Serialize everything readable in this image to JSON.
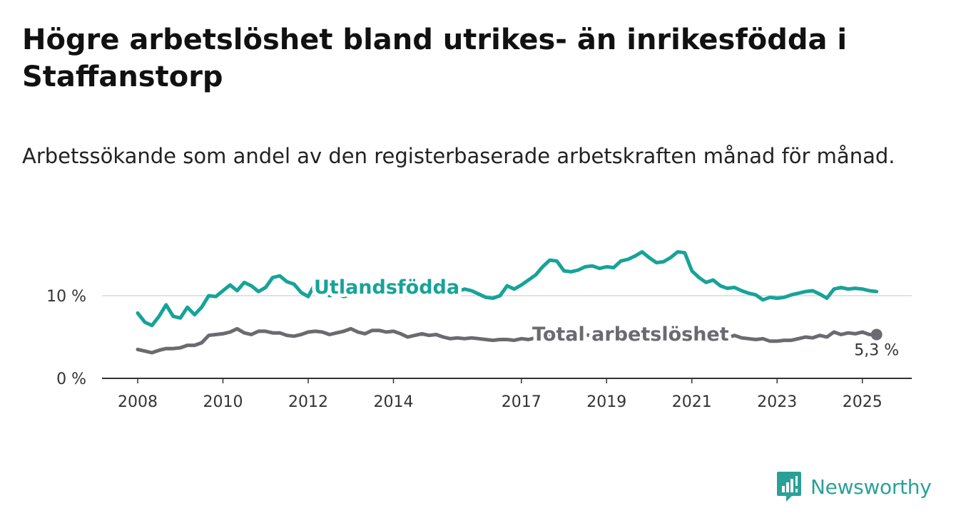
{
  "title": "Högre arbetslöshet bland utrikes- än inrikesfödda i Staffanstorp",
  "subtitle": "Arbetssökande som andel av den registerbaserade arbetskraften månad för månad.",
  "brand": {
    "name": "Newsworthy",
    "icon": "newsworthy-logo-icon",
    "color": "#2aa197"
  },
  "chart_data": {
    "type": "line",
    "xlabel": "",
    "ylabel": "",
    "ylim": [
      0,
      18
    ],
    "y_ticks": [
      {
        "value": 0,
        "label": "0 %"
      },
      {
        "value": 10,
        "label": "10 %"
      }
    ],
    "x_ticks": [
      "2008",
      "2010",
      "2012",
      "2014",
      "2017",
      "2019",
      "2021",
      "2023",
      "2025"
    ],
    "grid": "horizontal",
    "legend": "inline labels",
    "end_label": "5,3 %",
    "series": [
      {
        "name": "Utlandsfödda",
        "color": "#17a398",
        "points": [
          [
            "2008-01",
            7.9
          ],
          [
            "2008-03",
            6.8
          ],
          [
            "2008-05",
            6.4
          ],
          [
            "2008-07",
            7.5
          ],
          [
            "2008-09",
            8.9
          ],
          [
            "2008-11",
            7.5
          ],
          [
            "2009-01",
            7.3
          ],
          [
            "2009-03",
            8.6
          ],
          [
            "2009-05",
            7.7
          ],
          [
            "2009-07",
            8.6
          ],
          [
            "2009-09",
            10.0
          ],
          [
            "2009-11",
            9.9
          ],
          [
            "2010-01",
            10.6
          ],
          [
            "2010-03",
            11.3
          ],
          [
            "2010-05",
            10.6
          ],
          [
            "2010-07",
            11.6
          ],
          [
            "2010-09",
            11.2
          ],
          [
            "2010-11",
            10.5
          ],
          [
            "2011-01",
            11.0
          ],
          [
            "2011-03",
            12.2
          ],
          [
            "2011-05",
            12.4
          ],
          [
            "2011-07",
            11.7
          ],
          [
            "2011-09",
            11.4
          ],
          [
            "2011-11",
            10.4
          ],
          [
            "2012-01",
            9.9
          ],
          [
            "2012-03",
            11.5
          ],
          [
            "2012-05",
            10.6
          ],
          [
            "2012-07",
            10.0
          ],
          [
            "2012-09",
            10.2
          ],
          [
            "2012-11",
            9.9
          ],
          [
            "2013-01",
            10.1
          ],
          [
            "2013-03",
            10.3
          ],
          [
            "2013-05",
            10.4
          ],
          [
            "2013-07",
            10.6
          ],
          [
            "2013-09",
            10.2
          ],
          [
            "2013-11",
            10.5
          ],
          [
            "2014-01",
            10.3
          ],
          [
            "2014-03",
            10.0
          ],
          [
            "2014-05",
            10.6
          ],
          [
            "2014-07",
            10.2
          ],
          [
            "2014-09",
            10.5
          ],
          [
            "2014-11",
            10.3
          ],
          [
            "2015-01",
            10.6
          ],
          [
            "2015-03",
            10.4
          ],
          [
            "2015-05",
            10.7
          ],
          [
            "2015-07",
            10.5
          ],
          [
            "2015-09",
            10.8
          ],
          [
            "2015-11",
            10.6
          ],
          [
            "2016-01",
            10.2
          ],
          [
            "2016-03",
            9.8
          ],
          [
            "2016-05",
            9.7
          ],
          [
            "2016-07",
            10.0
          ],
          [
            "2016-09",
            11.2
          ],
          [
            "2016-11",
            10.8
          ],
          [
            "2017-01",
            11.3
          ],
          [
            "2017-03",
            11.9
          ],
          [
            "2017-05",
            12.5
          ],
          [
            "2017-07",
            13.5
          ],
          [
            "2017-09",
            14.3
          ],
          [
            "2017-11",
            14.2
          ],
          [
            "2018-01",
            13.0
          ],
          [
            "2018-03",
            12.9
          ],
          [
            "2018-05",
            13.1
          ],
          [
            "2018-07",
            13.5
          ],
          [
            "2018-09",
            13.6
          ],
          [
            "2018-11",
            13.3
          ],
          [
            "2019-01",
            13.5
          ],
          [
            "2019-03",
            13.4
          ],
          [
            "2019-05",
            14.2
          ],
          [
            "2019-07",
            14.4
          ],
          [
            "2019-09",
            14.8
          ],
          [
            "2019-11",
            15.3
          ],
          [
            "2020-01",
            14.6
          ],
          [
            "2020-03",
            14.0
          ],
          [
            "2020-05",
            14.1
          ],
          [
            "2020-07",
            14.6
          ],
          [
            "2020-09",
            15.3
          ],
          [
            "2020-11",
            15.2
          ],
          [
            "2021-01",
            13.0
          ],
          [
            "2021-03",
            12.2
          ],
          [
            "2021-05",
            11.6
          ],
          [
            "2021-07",
            11.9
          ],
          [
            "2021-09",
            11.2
          ],
          [
            "2021-11",
            10.9
          ],
          [
            "2022-01",
            11.0
          ],
          [
            "2022-03",
            10.6
          ],
          [
            "2022-05",
            10.3
          ],
          [
            "2022-07",
            10.1
          ],
          [
            "2022-09",
            9.5
          ],
          [
            "2022-11",
            9.8
          ],
          [
            "2023-01",
            9.7
          ],
          [
            "2023-03",
            9.8
          ],
          [
            "2023-05",
            10.1
          ],
          [
            "2023-07",
            10.3
          ],
          [
            "2023-09",
            10.5
          ],
          [
            "2023-11",
            10.6
          ],
          [
            "2024-01",
            10.2
          ],
          [
            "2024-03",
            9.7
          ],
          [
            "2024-05",
            10.8
          ],
          [
            "2024-07",
            11.0
          ],
          [
            "2024-09",
            10.8
          ],
          [
            "2024-11",
            10.9
          ],
          [
            "2025-01",
            10.8
          ],
          [
            "2025-03",
            10.6
          ],
          [
            "2025-05",
            10.5
          ]
        ]
      },
      {
        "name": "Total arbetslöshet",
        "color": "#6a6b70",
        "points": [
          [
            "2008-01",
            3.5
          ],
          [
            "2008-03",
            3.3
          ],
          [
            "2008-05",
            3.1
          ],
          [
            "2008-07",
            3.4
          ],
          [
            "2008-09",
            3.6
          ],
          [
            "2008-11",
            3.6
          ],
          [
            "2009-01",
            3.7
          ],
          [
            "2009-03",
            4.0
          ],
          [
            "2009-05",
            4.0
          ],
          [
            "2009-07",
            4.3
          ],
          [
            "2009-09",
            5.2
          ],
          [
            "2009-11",
            5.3
          ],
          [
            "2010-01",
            5.4
          ],
          [
            "2010-03",
            5.6
          ],
          [
            "2010-05",
            6.0
          ],
          [
            "2010-07",
            5.5
          ],
          [
            "2010-09",
            5.3
          ],
          [
            "2010-11",
            5.7
          ],
          [
            "2011-01",
            5.7
          ],
          [
            "2011-03",
            5.5
          ],
          [
            "2011-05",
            5.5
          ],
          [
            "2011-07",
            5.2
          ],
          [
            "2011-09",
            5.1
          ],
          [
            "2011-11",
            5.3
          ],
          [
            "2012-01",
            5.6
          ],
          [
            "2012-03",
            5.7
          ],
          [
            "2012-05",
            5.6
          ],
          [
            "2012-07",
            5.3
          ],
          [
            "2012-09",
            5.5
          ],
          [
            "2012-11",
            5.7
          ],
          [
            "2013-01",
            6.0
          ],
          [
            "2013-03",
            5.6
          ],
          [
            "2013-05",
            5.4
          ],
          [
            "2013-07",
            5.8
          ],
          [
            "2013-09",
            5.8
          ],
          [
            "2013-11",
            5.6
          ],
          [
            "2014-01",
            5.7
          ],
          [
            "2014-03",
            5.4
          ],
          [
            "2014-05",
            5.0
          ],
          [
            "2014-07",
            5.2
          ],
          [
            "2014-09",
            5.4
          ],
          [
            "2014-11",
            5.2
          ],
          [
            "2015-01",
            5.3
          ],
          [
            "2015-03",
            5.0
          ],
          [
            "2015-05",
            4.8
          ],
          [
            "2015-07",
            4.9
          ],
          [
            "2015-09",
            4.8
          ],
          [
            "2015-11",
            4.9
          ],
          [
            "2016-01",
            4.8
          ],
          [
            "2016-03",
            4.7
          ],
          [
            "2016-05",
            4.6
          ],
          [
            "2016-07",
            4.7
          ],
          [
            "2016-09",
            4.7
          ],
          [
            "2016-11",
            4.6
          ],
          [
            "2017-01",
            4.8
          ],
          [
            "2017-03",
            4.7
          ],
          [
            "2017-05",
            4.9
          ],
          [
            "2017-07",
            5.1
          ],
          [
            "2017-09",
            5.2
          ],
          [
            "2017-11",
            5.1
          ],
          [
            "2018-01",
            5.0
          ],
          [
            "2018-03",
            5.1
          ],
          [
            "2018-05",
            5.2
          ],
          [
            "2018-07",
            5.3
          ],
          [
            "2018-09",
            5.1
          ],
          [
            "2018-11",
            5.2
          ],
          [
            "2019-01",
            5.3
          ],
          [
            "2019-03",
            5.2
          ],
          [
            "2019-05",
            5.4
          ],
          [
            "2019-07",
            5.5
          ],
          [
            "2019-09",
            5.6
          ],
          [
            "2019-11",
            5.7
          ],
          [
            "2020-01",
            5.8
          ],
          [
            "2020-03",
            5.6
          ],
          [
            "2020-05",
            5.7
          ],
          [
            "2020-07",
            5.8
          ],
          [
            "2020-09",
            5.6
          ],
          [
            "2020-11",
            5.5
          ],
          [
            "2021-01",
            5.4
          ],
          [
            "2021-03",
            5.3
          ],
          [
            "2021-05",
            5.2
          ],
          [
            "2021-07",
            5.1
          ],
          [
            "2021-09",
            5.0
          ],
          [
            "2021-11",
            4.9
          ],
          [
            "2022-01",
            5.2
          ],
          [
            "2022-03",
            4.9
          ],
          [
            "2022-05",
            4.8
          ],
          [
            "2022-07",
            4.7
          ],
          [
            "2022-09",
            4.8
          ],
          [
            "2022-11",
            4.5
          ],
          [
            "2023-01",
            4.5
          ],
          [
            "2023-03",
            4.6
          ],
          [
            "2023-05",
            4.6
          ],
          [
            "2023-07",
            4.8
          ],
          [
            "2023-09",
            5.0
          ],
          [
            "2023-11",
            4.9
          ],
          [
            "2024-01",
            5.2
          ],
          [
            "2024-03",
            5.0
          ],
          [
            "2024-05",
            5.6
          ],
          [
            "2024-07",
            5.3
          ],
          [
            "2024-09",
            5.5
          ],
          [
            "2024-11",
            5.4
          ],
          [
            "2025-01",
            5.6
          ],
          [
            "2025-03",
            5.3
          ],
          [
            "2025-05",
            5.3
          ]
        ]
      }
    ]
  }
}
